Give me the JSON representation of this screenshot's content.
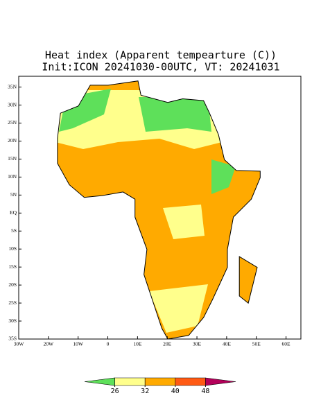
{
  "title": "Heat index (Apparent tempearture (C))",
  "subtitle": "Init:ICON 20241030-00UTC, VT: 20241031",
  "map_extent": {
    "lon": [
      -30,
      65
    ],
    "lat": [
      -35,
      38
    ]
  },
  "lat_ticks": [
    {
      "value": 35,
      "label": "35N"
    },
    {
      "value": 30,
      "label": "30N"
    },
    {
      "value": 25,
      "label": "25N"
    },
    {
      "value": 20,
      "label": "20N"
    },
    {
      "value": 15,
      "label": "15N"
    },
    {
      "value": 10,
      "label": "10N"
    },
    {
      "value": 5,
      "label": "5N"
    },
    {
      "value": 0,
      "label": "EQ"
    },
    {
      "value": -5,
      "label": "5S"
    },
    {
      "value": -10,
      "label": "10S"
    },
    {
      "value": -15,
      "label": "15S"
    },
    {
      "value": -20,
      "label": "20S"
    },
    {
      "value": -25,
      "label": "25S"
    },
    {
      "value": -30,
      "label": "30S"
    },
    {
      "value": -35,
      "label": "35S"
    }
  ],
  "lon_ticks": [
    {
      "value": -30,
      "label": "30W"
    },
    {
      "value": -20,
      "label": "20W"
    },
    {
      "value": -10,
      "label": "10W"
    },
    0,
    {
      "value": 10,
      "label": "10E"
    },
    {
      "value": 20,
      "label": "20E"
    },
    {
      "value": 30,
      "label": "30E"
    },
    {
      "value": 40,
      "label": "40E"
    },
    {
      "value": 50,
      "label": "50E"
    },
    {
      "value": 60,
      "label": "60E"
    }
  ],
  "colorbar": {
    "ticks": [
      26,
      32,
      40,
      48
    ],
    "colors": [
      "#5ee05a",
      "#ffff8c",
      "#ffaa00",
      "#ff5a14",
      "#b4005a"
    ]
  }
}
